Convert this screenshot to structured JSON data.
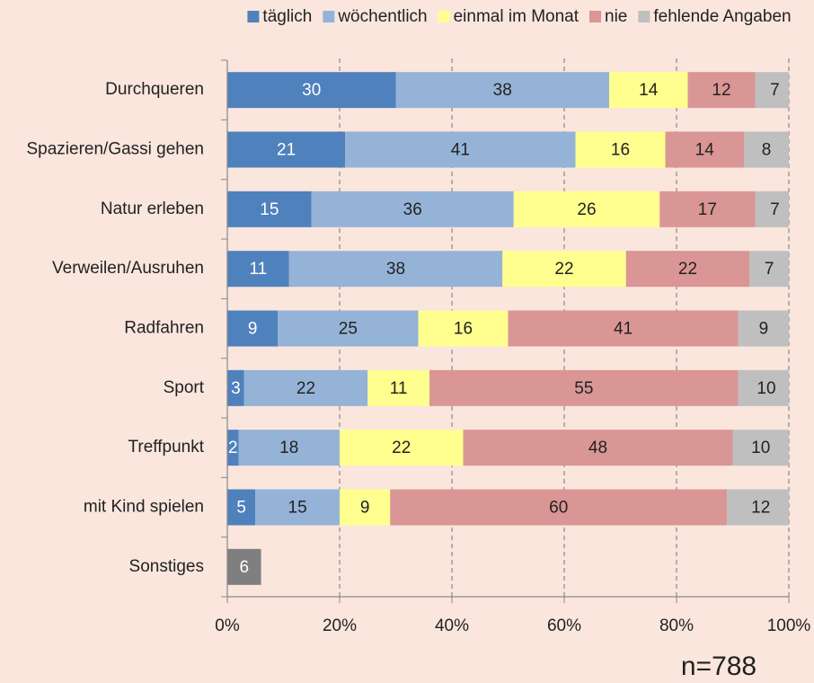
{
  "chart_data": {
    "type": "stacked-barh",
    "categories": [
      "Durchqueren",
      "Spazieren/Gassi gehen",
      "Natur erleben",
      "Verweilen/Ausruhen",
      "Radfahren",
      "Sport",
      "Treffpunkt",
      "mit Kind spielen",
      "Sonstiges"
    ],
    "series": [
      {
        "name": "täglich",
        "color": "#4f81bd",
        "label_color": "#ffffff",
        "values": [
          30,
          21,
          15,
          11,
          9,
          3,
          2,
          5,
          null
        ]
      },
      {
        "name": "wöchentlich",
        "color": "#95b3d7",
        "label_color": "#222222",
        "values": [
          38,
          41,
          36,
          38,
          25,
          22,
          18,
          15,
          null
        ]
      },
      {
        "name": "einmal im Monat",
        "color": "#ffff8f",
        "label_color": "#222222",
        "values": [
          14,
          16,
          26,
          22,
          16,
          11,
          22,
          9,
          null
        ]
      },
      {
        "name": "nie",
        "color": "#d99694",
        "label_color": "#222222",
        "values": [
          12,
          14,
          17,
          22,
          41,
          55,
          48,
          60,
          null
        ]
      },
      {
        "name": "fehlende Angaben",
        "color": "#bfbfbf",
        "label_color": "#222222",
        "values": [
          7,
          8,
          7,
          7,
          9,
          10,
          10,
          12,
          null
        ]
      },
      {
        "color": "#7f7f7f",
        "label_color": "#ffffff",
        "values": [
          null,
          null,
          null,
          null,
          null,
          null,
          null,
          null,
          6
        ]
      }
    ],
    "xlim": [
      0,
      100
    ],
    "xticks": [
      {
        "value": 0,
        "label": "0%"
      },
      {
        "value": 20,
        "label": "20%"
      },
      {
        "value": 40,
        "label": "40%"
      },
      {
        "value": 60,
        "label": "60%"
      },
      {
        "value": 80,
        "label": "80%"
      },
      {
        "value": 100,
        "label": "100%"
      }
    ],
    "grid": true,
    "legend": "top",
    "note": "n=788"
  }
}
